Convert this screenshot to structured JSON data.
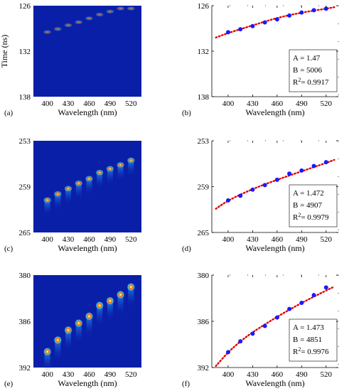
{
  "chart_data": [
    {
      "panel": "(a)",
      "type": "heatmap",
      "xlabel": "Wavelength (nm)",
      "ylabel": "Time (ns)",
      "xticks": [
        400,
        430,
        460,
        490,
        520
      ],
      "yticks": [
        126,
        132,
        138
      ],
      "xlim": [
        380,
        535
      ],
      "ylim": [
        138,
        126
      ],
      "spots": {
        "x": [
          400,
          415,
          430,
          445,
          460,
          475,
          490,
          505,
          520
        ],
        "y": [
          129.5,
          129.1,
          128.6,
          128.2,
          127.7,
          127.2,
          126.8,
          126.4,
          126.4
        ]
      }
    },
    {
      "panel": "(b)",
      "type": "scatter",
      "xlabel": "Wavelength (nm)",
      "ylabel": "Time (ns)",
      "xticks": [
        400,
        430,
        460,
        490,
        520
      ],
      "yticks": [
        126,
        132,
        138
      ],
      "xlim": [
        380,
        535
      ],
      "ylim": [
        138,
        126
      ],
      "grid": false,
      "x": [
        400,
        415,
        430,
        445,
        460,
        475,
        490,
        505,
        520
      ],
      "y": [
        129.5,
        129.1,
        128.7,
        128.2,
        127.8,
        127.3,
        126.9,
        126.6,
        126.4
      ],
      "fit": {
        "x": [
          385,
          400,
          430,
          460,
          490,
          520,
          530
        ],
        "y": [
          130.2,
          129.6,
          128.6,
          127.6,
          126.9,
          126.4,
          126.2
        ]
      },
      "annotation": {
        "a": "A = 1.47",
        "b": "B = 5006",
        "r2_prefix": "R",
        "r2_value": "= 0.9917"
      }
    },
    {
      "panel": "(c)",
      "type": "heatmap",
      "xlabel": "Wavelength (nm)",
      "ylabel": "",
      "xticks": [
        400,
        430,
        460,
        490,
        520
      ],
      "yticks": [
        253,
        259,
        265
      ],
      "xlim": [
        380,
        535
      ],
      "ylim": [
        265,
        253
      ],
      "spots": {
        "x": [
          400,
          415,
          430,
          445,
          460,
          475,
          490,
          505,
          520
        ],
        "y": [
          260.8,
          260.0,
          259.3,
          258.6,
          258.0,
          257.2,
          256.7,
          256.2,
          255.6
        ]
      }
    },
    {
      "panel": "(d)",
      "type": "scatter",
      "xlabel": "Wavelength (nm)",
      "ylabel": "",
      "xticks": [
        400,
        430,
        460,
        490,
        520
      ],
      "yticks": [
        253,
        259,
        265
      ],
      "xlim": [
        380,
        535
      ],
      "ylim": [
        265,
        253
      ],
      "grid": false,
      "x": [
        400,
        415,
        430,
        445,
        460,
        475,
        490,
        505,
        520
      ],
      "y": [
        260.8,
        260.2,
        259.4,
        258.8,
        258.1,
        257.3,
        256.9,
        256.3,
        255.8
      ],
      "fit": {
        "x": [
          385,
          400,
          430,
          460,
          490,
          520,
          530
        ],
        "y": [
          261.9,
          260.8,
          259.3,
          258.1,
          257.0,
          255.9,
          255.5
        ]
      },
      "annotation": {
        "a": "A = 1.472",
        "b": "B = 4907",
        "r2_prefix": "R",
        "r2_value": "= 0.9979"
      }
    },
    {
      "panel": "(e)",
      "type": "heatmap",
      "xlabel": "Wavelength (nm)",
      "ylabel": "",
      "xticks": [
        400,
        430,
        460,
        490,
        520
      ],
      "yticks": [
        380,
        386,
        392
      ],
      "xlim": [
        380,
        535
      ],
      "ylim": [
        392,
        380
      ],
      "spots": {
        "x": [
          400,
          415,
          430,
          445,
          460,
          475,
          490,
          505,
          520
        ],
        "y": [
          390.0,
          388.5,
          387.2,
          386.3,
          385.4,
          384.0,
          383.4,
          382.6,
          381.6
        ]
      }
    },
    {
      "panel": "(f)",
      "type": "scatter",
      "xlabel": "Wavelength (nm)",
      "ylabel": "",
      "xticks": [
        400,
        430,
        460,
        490,
        520
      ],
      "yticks": [
        380,
        386,
        392
      ],
      "xlim": [
        380,
        535
      ],
      "ylim": [
        392,
        380
      ],
      "grid": false,
      "x": [
        400,
        415,
        430,
        445,
        460,
        475,
        490,
        505,
        520
      ],
      "y": [
        390.0,
        388.6,
        387.6,
        386.6,
        385.5,
        384.4,
        383.6,
        382.6,
        381.6
      ],
      "fit": {
        "x": [
          385,
          400,
          415,
          430,
          460,
          490,
          520,
          530
        ],
        "y": [
          391.8,
          390.0,
          388.6,
          387.4,
          385.4,
          383.6,
          382.0,
          381.5
        ]
      },
      "annotation": {
        "a": "A = 1.473",
        "b": "B = 4851",
        "r2_prefix": "R",
        "r2_value": "= 0.9976"
      }
    }
  ],
  "colors": {
    "heatmap_bg": "#0a1fa8",
    "point": "#1a1aff",
    "fit": "#e00000"
  }
}
